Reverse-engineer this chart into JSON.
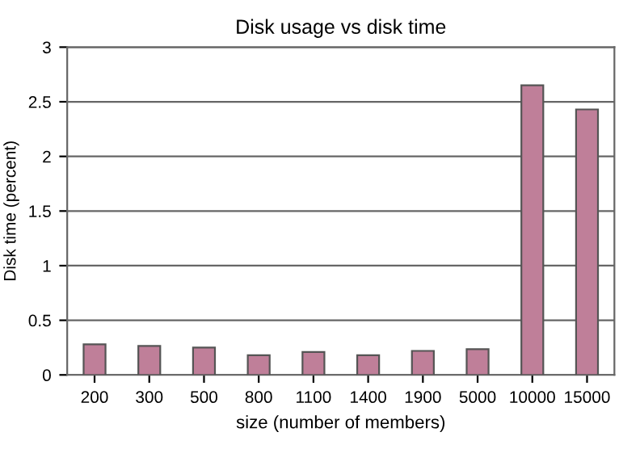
{
  "chart_data": {
    "type": "bar",
    "title": "Disk usage vs disk time",
    "xlabel": "size (number of members)",
    "ylabel": "Disk time (percent)",
    "categories": [
      "200",
      "300",
      "500",
      "800",
      "1100",
      "1400",
      "1900",
      "5000",
      "10000",
      "15000"
    ],
    "values": [
      0.28,
      0.265,
      0.25,
      0.18,
      0.21,
      0.18,
      0.22,
      0.235,
      2.65,
      2.43
    ],
    "color": "#bf7f99",
    "ylim": [
      0,
      3
    ],
    "yticks": [
      0,
      0.5,
      1,
      1.5,
      2,
      2.5,
      3
    ],
    "grid": "y",
    "legend": false
  }
}
